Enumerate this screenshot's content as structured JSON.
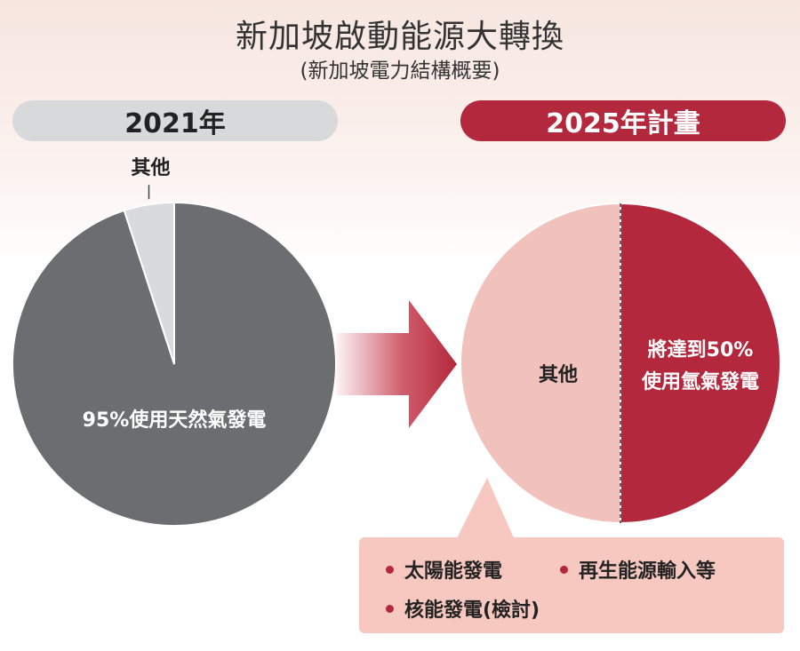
{
  "header": {
    "title": "新加坡啟動能源大轉換",
    "subtitle": "(新加坡電力結構概要)"
  },
  "colors": {
    "gas_2021": "#6b6d70",
    "other_2021": "#d9dadb",
    "other_2025": "#f1c1bb",
    "hydrogen_2025": "#b3283c",
    "legend_bg": "#f7c8c0"
  },
  "chart_data": [
    {
      "type": "pie",
      "title": "2021年",
      "slices": [
        {
          "label": "95%使用天然氣發電",
          "value": 95,
          "color": "#6b6d70"
        },
        {
          "label": "其他",
          "value": 5,
          "color": "#d9dadb"
        }
      ]
    },
    {
      "type": "pie",
      "title": "2025年計畫",
      "slices": [
        {
          "label": "將達到50%使用氫氣發電",
          "label_lines": [
            "將達到50%",
            "使用氫氣發電"
          ],
          "value": 50,
          "color": "#b3283c"
        },
        {
          "label": "其他",
          "value": 50,
          "color": "#f1c1bb"
        }
      ],
      "other_breakdown": [
        "太陽能發電",
        "再生能源輸入等",
        "核能發電(檢討)"
      ]
    }
  ]
}
